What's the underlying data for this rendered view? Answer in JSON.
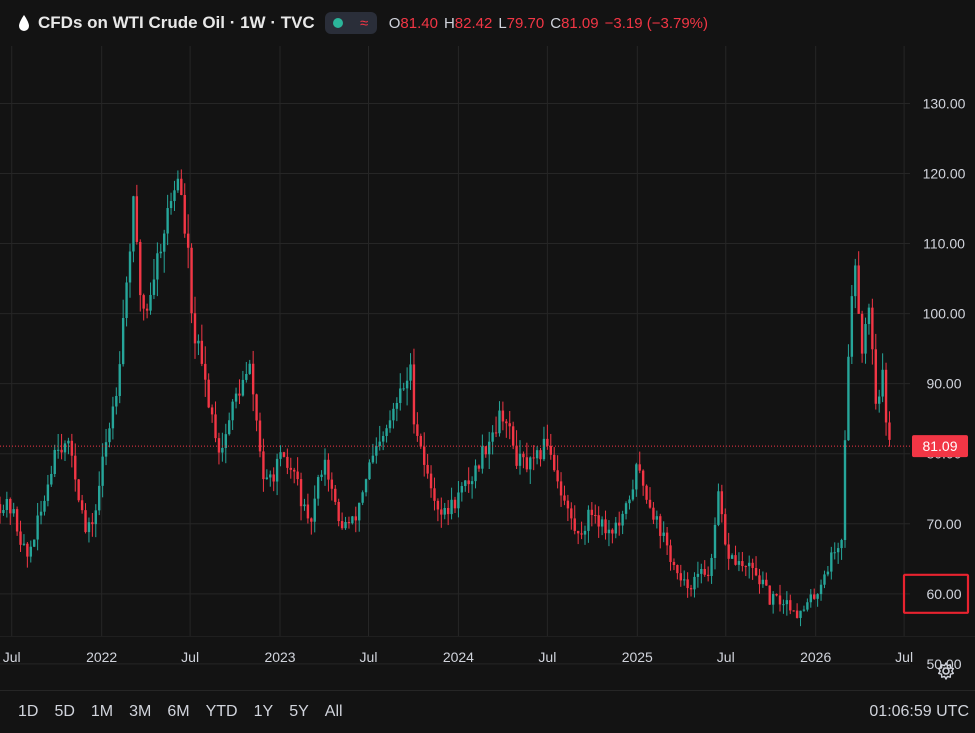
{
  "header": {
    "title": "CFDs on WTI Crude Oil · 1W · TVC",
    "ohlc": [
      {
        "k": "O",
        "v": "81.40"
      },
      {
        "k": "H",
        "v": "82.42"
      },
      {
        "k": "L",
        "v": "79.70"
      },
      {
        "k": "C",
        "v": "81.09"
      },
      {
        "k": "",
        "v": "−3.19 (−3.79%)"
      }
    ],
    "icons": [
      "oil-drop-icon",
      "status-dot-icon",
      "wave-icon"
    ]
  },
  "footer": {
    "ranges": [
      "1D",
      "5D",
      "1M",
      "3M",
      "6M",
      "YTD",
      "1Y",
      "5Y",
      "All"
    ],
    "clock": "01:06:59 UTC"
  },
  "colors": {
    "background": "#131313",
    "up": "#26a69a",
    "down": "#f23645",
    "grid": "#262626",
    "text": "#d1d4dc"
  },
  "chart_data": {
    "type": "candlestick",
    "symbol": "CFDs on WTI Crude Oil",
    "interval": "1W",
    "source": "TVC",
    "current_price": 81.09,
    "current_price_label": "81.09",
    "highlighted_label": "60.00",
    "y_ticks": [
      "50.00",
      "60.00",
      "70.00",
      "80.00",
      "90.00",
      "100.00",
      "110.00",
      "120.00",
      "130.00"
    ],
    "ylim": [
      47.7,
      138.2
    ],
    "x_ticks": [
      "Jul",
      "2022",
      "Jul",
      "2023",
      "Jul",
      "2024",
      "Jul",
      "2025",
      "Jul",
      "2026",
      "Jul"
    ],
    "x_tick_dates": [
      "2021-07",
      "2022-01",
      "2022-07",
      "2023-01",
      "2023-07",
      "2024-01",
      "2024-07",
      "2025-01",
      "2025-07",
      "2026-01",
      "2026-07"
    ],
    "price_path": [
      [
        "2021-06",
        73
      ],
      [
        "2021-07",
        72
      ],
      [
        "2021-08",
        65
      ],
      [
        "2021-09",
        72
      ],
      [
        "2021-10",
        82
      ],
      [
        "2021-11",
        80
      ],
      [
        "2021-12",
        68
      ],
      [
        "2021-12-20",
        72
      ],
      [
        "2022-01",
        78
      ],
      [
        "2022-02",
        90
      ],
      [
        "2022-03-07",
        115
      ],
      [
        "2022-03-21",
        103
      ],
      [
        "2022-04",
        100
      ],
      [
        "2022-05",
        110
      ],
      [
        "2022-06-06",
        120
      ],
      [
        "2022-06-27",
        108
      ],
      [
        "2022-07",
        100
      ],
      [
        "2022-08",
        90
      ],
      [
        "2022-09",
        80
      ],
      [
        "2022-10",
        88
      ],
      [
        "2022-11",
        92
      ],
      [
        "2022-12",
        75
      ],
      [
        "2023-01",
        79
      ],
      [
        "2023-02",
        77
      ],
      [
        "2023-03",
        69
      ],
      [
        "2023-04",
        80
      ],
      [
        "2023-05",
        70
      ],
      [
        "2023-06",
        70
      ],
      [
        "2023-07",
        78
      ],
      [
        "2023-08",
        82
      ],
      [
        "2023-09",
        88
      ],
      [
        "2023-09-27",
        92
      ],
      [
        "2023-10",
        86
      ],
      [
        "2023-11",
        76
      ],
      [
        "2023-12",
        71
      ],
      [
        "2024-01",
        74
      ],
      [
        "2024-02",
        77
      ],
      [
        "2024-03",
        82
      ],
      [
        "2024-04",
        86
      ],
      [
        "2024-05",
        79
      ],
      [
        "2024-06",
        78
      ],
      [
        "2024-07",
        82
      ],
      [
        "2024-08",
        74
      ],
      [
        "2024-09",
        68
      ],
      [
        "2024-10",
        72
      ],
      [
        "2024-11",
        69
      ],
      [
        "2024-12",
        70
      ],
      [
        "2025-01",
        78
      ],
      [
        "2025-02",
        72
      ],
      [
        "2025-03",
        67
      ],
      [
        "2025-04",
        61
      ],
      [
        "2025-05",
        62
      ],
      [
        "2025-06-02",
        64
      ],
      [
        "2025-06-16",
        74
      ],
      [
        "2025-07",
        66
      ],
      [
        "2025-08",
        64
      ],
      [
        "2025-09",
        63
      ],
      [
        "2025-10",
        59
      ],
      [
        "2025-11",
        59
      ],
      [
        "2025-12",
        57
      ],
      [
        "2026-01",
        60
      ],
      [
        "2026-02",
        65
      ],
      [
        "2026-02-23",
        68
      ],
      [
        "2026-03-09",
        95
      ],
      [
        "2026-03-23",
        108
      ],
      [
        "2026-04-06",
        95
      ],
      [
        "2026-04-20",
        102
      ],
      [
        "2026-05-04",
        88
      ],
      [
        "2026-05-18",
        91
      ],
      [
        "2026-05-25",
        84
      ],
      [
        "2026-06-01",
        81.09
      ]
    ]
  }
}
